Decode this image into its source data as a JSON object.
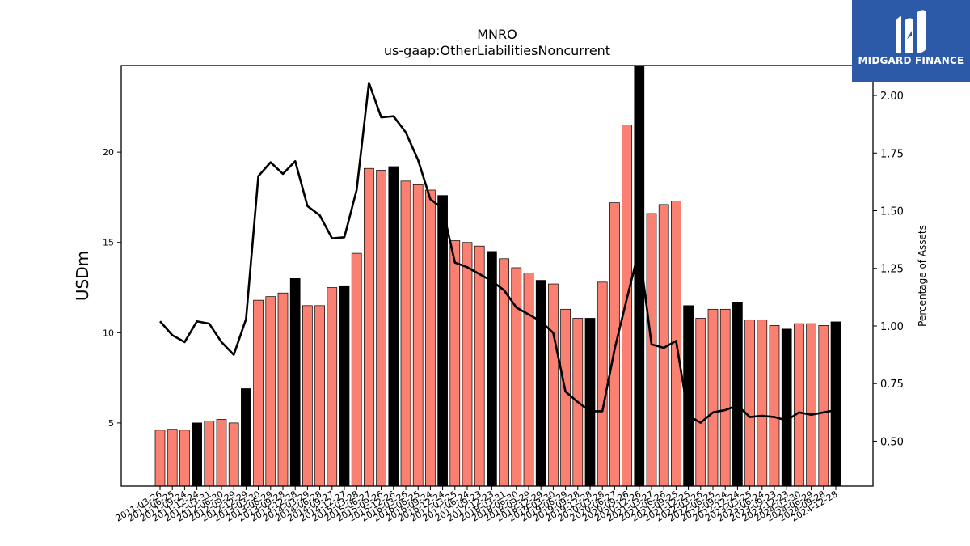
{
  "brand": {
    "name": "MIDGARD FINANCE",
    "bg_color": "#2d5aa8"
  },
  "chart_data": {
    "type": "bar",
    "title": "MNRO",
    "subtitle": "us-gaap:OtherLiabilitiesNoncurrent",
    "ylabel": "USDm",
    "y2label": "Percentage of Assets",
    "ylim": [
      1.5,
      24.8
    ],
    "y2lim": [
      0.305,
      2.13
    ],
    "yticks": [
      5,
      10,
      15,
      20
    ],
    "y2ticks": [
      0.5,
      0.75,
      1.0,
      1.25,
      1.5,
      1.75,
      2.0
    ],
    "bar_color": "#fa8072",
    "highlight_color": "#000000",
    "line_color": "#000000",
    "categories": [
      "2011-03-26",
      "2011-06-25",
      "2011-09-24",
      "2011-12-24",
      "2012-03-31",
      "2012-06-30",
      "2012-09-29",
      "2012-12-29",
      "2013-03-30",
      "2013-06-29",
      "2013-09-28",
      "2013-12-28",
      "2014-03-29",
      "2014-06-28",
      "2014-09-27",
      "2014-12-27",
      "2015-03-28",
      "2015-06-27",
      "2015-09-26",
      "2015-12-26",
      "2016-03-26",
      "2016-06-25",
      "2016-09-24",
      "2016-12-24",
      "2017-03-25",
      "2017-06-24",
      "2017-09-23",
      "2017-12-23",
      "2018-03-31",
      "2018-06-30",
      "2018-09-29",
      "2018-12-29",
      "2019-03-30",
      "2019-06-29",
      "2019-09-28",
      "2019-12-28",
      "2020-03-28",
      "2020-06-27",
      "2020-09-26",
      "2020-12-26",
      "2021-03-27",
      "2021-06-26",
      "2021-09-25",
      "2021-12-25",
      "2022-03-26",
      "2022-06-25",
      "2022-09-24",
      "2022-12-24",
      "2023-03-25",
      "2023-06-24",
      "2023-09-23",
      "2023-12-23",
      "2024-03-30",
      "2024-06-29",
      "2024-09-28",
      "2024-12-28"
    ],
    "xtick_labels": [
      "2011-03-26",
      "2011-06-25",
      "2011-09-24",
      "2011-12-24",
      "2012-03-31",
      "2012-06-30",
      "2012-09-29",
      "2012-12-29",
      "2013-03-30",
      "2013-06-29",
      "2013-09-28",
      "2013-12-28",
      "2014-03-29",
      "2014-06-28",
      "2014-09-27",
      "2014-12-27",
      "2015-03-28",
      "2015-06-27",
      "2015-09-26",
      "2015-12-26",
      "2016-03-26",
      "2016-06-25",
      "2016-09-24",
      "2016-12-24",
      "2017-03-25",
      "2017-06-24",
      "2017-09-23",
      "2017-12-23",
      "2018-03-31",
      "2018-06-30",
      "2018-09-29",
      "2018-12-29",
      "2019-03-30",
      "2019-06-29",
      "2019-09-28",
      "2019-12-28",
      "2020-03-28",
      "2020-06-27",
      "2020-09-26",
      "2020-12-26",
      "2021-03-27",
      "2021-06-26",
      "2021-09-25",
      "2021-12-25",
      "2022-03-26",
      "2022-06-25",
      "2022-09-24",
      "2022-12-24",
      "2023-03-25",
      "2023-06-24",
      "2023-09-23",
      "2023-12-23",
      "2024-03-30",
      "2024-06-29",
      "2024-09-28",
      "2024-12-28"
    ],
    "values": [
      4.6,
      4.65,
      4.6,
      5.0,
      5.1,
      5.2,
      5.0,
      6.9,
      11.8,
      12.0,
      12.2,
      13.0,
      11.5,
      11.5,
      12.5,
      12.6,
      14.4,
      19.1,
      19.0,
      19.2,
      18.4,
      18.2,
      17.9,
      17.6,
      15.1,
      15.0,
      14.8,
      14.5,
      14.1,
      13.6,
      13.3,
      12.9,
      12.7,
      11.3,
      10.8,
      10.8,
      12.8,
      17.2,
      21.5,
      24.8,
      16.6,
      17.1,
      17.3,
      11.5,
      10.8,
      11.3,
      11.3,
      11.7,
      10.7,
      10.7,
      10.4,
      10.2,
      10.5,
      10.5,
      10.4,
      10.6
    ],
    "highlight": [
      false,
      false,
      false,
      true,
      false,
      false,
      false,
      true,
      false,
      false,
      false,
      true,
      false,
      false,
      false,
      true,
      false,
      false,
      false,
      true,
      false,
      false,
      false,
      true,
      false,
      false,
      false,
      true,
      false,
      false,
      false,
      true,
      false,
      false,
      false,
      true,
      false,
      false,
      false,
      true,
      false,
      false,
      false,
      true,
      false,
      false,
      false,
      true,
      false,
      false,
      false,
      true,
      false,
      false,
      false,
      true
    ],
    "pct_of_assets": [
      1.02,
      0.96,
      0.93,
      1.02,
      1.01,
      0.93,
      0.875,
      1.03,
      1.65,
      1.71,
      1.66,
      1.715,
      1.52,
      1.48,
      1.38,
      1.385,
      1.59,
      2.055,
      1.905,
      1.91,
      1.84,
      1.72,
      1.55,
      1.51,
      1.275,
      1.255,
      1.225,
      1.195,
      1.155,
      1.08,
      1.05,
      1.02,
      0.97,
      0.715,
      0.67,
      0.63,
      0.63,
      0.9,
      1.12,
      1.335,
      0.92,
      0.905,
      0.935,
      0.61,
      0.58,
      0.625,
      0.635,
      0.655,
      0.605,
      0.61,
      0.605,
      0.59,
      0.625,
      0.615,
      0.625,
      0.635
    ]
  }
}
